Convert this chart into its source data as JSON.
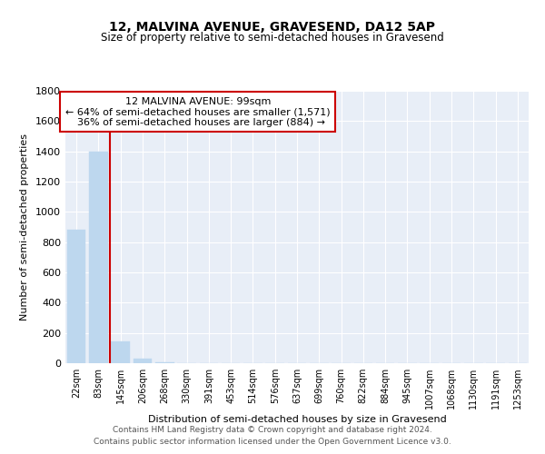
{
  "title": "12, MALVINA AVENUE, GRAVESEND, DA12 5AP",
  "subtitle": "Size of property relative to semi-detached houses in Gravesend",
  "xlabel": "Distribution of semi-detached houses by size in Gravesend",
  "ylabel": "Number of semi-detached properties",
  "footer_line1": "Contains HM Land Registry data © Crown copyright and database right 2024.",
  "footer_line2": "Contains public sector information licensed under the Open Government Licence v3.0.",
  "categories": [
    "22sqm",
    "83sqm",
    "145sqm",
    "206sqm",
    "268sqm",
    "330sqm",
    "391sqm",
    "453sqm",
    "514sqm",
    "576sqm",
    "637sqm",
    "699sqm",
    "760sqm",
    "822sqm",
    "884sqm",
    "945sqm",
    "1007sqm",
    "1068sqm",
    "1130sqm",
    "1191sqm",
    "1253sqm"
  ],
  "values": [
    880,
    1400,
    145,
    30,
    5,
    2,
    1,
    0,
    0,
    0,
    0,
    0,
    0,
    0,
    0,
    0,
    0,
    0,
    0,
    0,
    0
  ],
  "bar_color": "#bdd7ee",
  "red_line_x": 1.5,
  "property_size": "99sqm",
  "pct_smaller": 64,
  "count_smaller": 1571,
  "pct_larger": 36,
  "count_larger": 884,
  "ylim": [
    0,
    1800
  ],
  "yticks": [
    0,
    200,
    400,
    600,
    800,
    1000,
    1200,
    1400,
    1600,
    1800
  ],
  "plot_bg_color": "#e8eef7",
  "fig_bg_color": "#ffffff",
  "grid_color": "#ffffff",
  "ann_box_color": "#ffffff",
  "ann_box_edge": "#cc0000",
  "red_line_color": "#cc0000"
}
